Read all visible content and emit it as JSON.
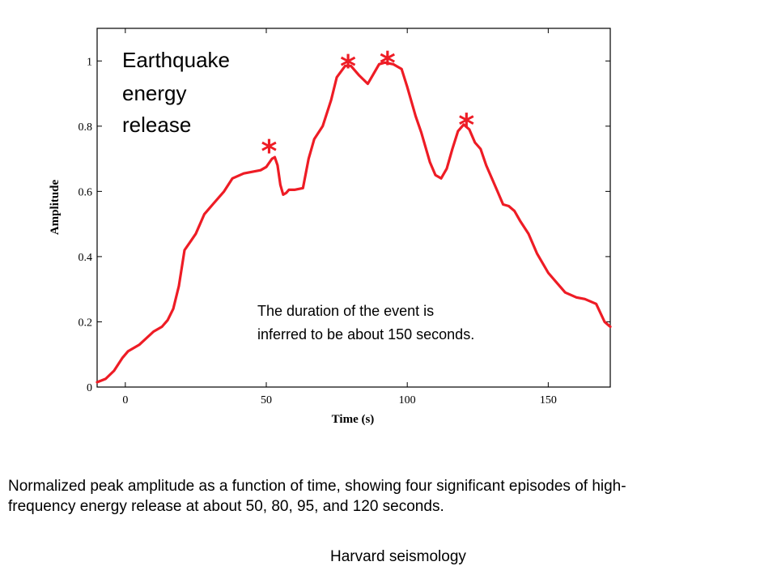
{
  "chart_data": {
    "type": "line",
    "xlabel": "Time (s)",
    "ylabel": "Amplitude",
    "xlim": [
      -10,
      172
    ],
    "ylim": [
      0,
      1.1
    ],
    "x_ticks": [
      0,
      50,
      100,
      150
    ],
    "y_ticks": [
      0,
      0.2,
      0.4,
      0.6,
      0.8,
      1
    ],
    "grid": false,
    "line_color": "#ee1c25",
    "series": [
      {
        "x": [
          -10,
          -7,
          -4,
          -1,
          1,
          5,
          10,
          13,
          15,
          17,
          19,
          21,
          23,
          25,
          28,
          31,
          35,
          38,
          42,
          45,
          48,
          50,
          52,
          53,
          54,
          55,
          56,
          57,
          58,
          60,
          63,
          65,
          67,
          70,
          73,
          75,
          78,
          80,
          83,
          86,
          88,
          90,
          92,
          95,
          98,
          100,
          103,
          105,
          108,
          110,
          112,
          114,
          116,
          118,
          120,
          122,
          124,
          126,
          128,
          130,
          132,
          134,
          136,
          138,
          140,
          143,
          146,
          150,
          153,
          156,
          160,
          163,
          167,
          170,
          172
        ],
        "y": [
          0.015,
          0.025,
          0.05,
          0.09,
          0.11,
          0.13,
          0.17,
          0.185,
          0.205,
          0.24,
          0.31,
          0.42,
          0.445,
          0.47,
          0.53,
          0.56,
          0.6,
          0.64,
          0.655,
          0.66,
          0.665,
          0.675,
          0.7,
          0.705,
          0.68,
          0.62,
          0.59,
          0.595,
          0.605,
          0.605,
          0.61,
          0.7,
          0.76,
          0.8,
          0.88,
          0.95,
          0.985,
          0.985,
          0.955,
          0.93,
          0.96,
          0.99,
          0.995,
          0.99,
          0.975,
          0.92,
          0.83,
          0.78,
          0.69,
          0.65,
          0.64,
          0.67,
          0.73,
          0.785,
          0.805,
          0.79,
          0.75,
          0.73,
          0.68,
          0.64,
          0.6,
          0.56,
          0.555,
          0.54,
          0.51,
          0.47,
          0.41,
          0.35,
          0.32,
          0.29,
          0.275,
          0.27,
          0.255,
          0.2,
          0.185
        ]
      }
    ],
    "annotations": {
      "title_lines": [
        "Earthquake",
        "energy",
        "release"
      ],
      "stars": [
        {
          "label": "*",
          "x": 51,
          "y": 0.75
        },
        {
          "label": "*",
          "x": 79,
          "y": 1.01
        },
        {
          "label": "*",
          "x": 93,
          "y": 1.02
        },
        {
          "label": "*",
          "x": 121,
          "y": 0.83
        }
      ],
      "note_lines": [
        "The duration of the event is",
        "inferred to be about 150 seconds."
      ]
    }
  },
  "caption": "Normalized peak amplitude as a function of time, showing four significant episodes of high-frequency energy release at about 50, 80, 95, and 120 seconds.",
  "source": "Harvard seismology"
}
